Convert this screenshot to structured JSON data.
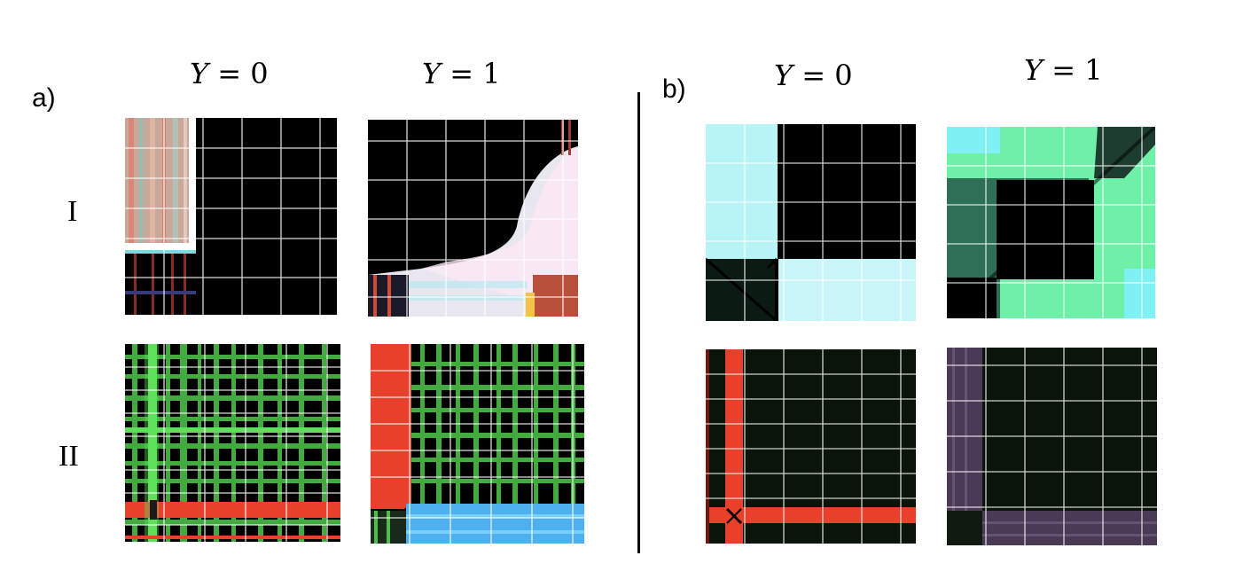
{
  "panels": {
    "a": {
      "label": "a)",
      "columns": [
        {
          "var": "Y",
          "rest": " = 0"
        },
        {
          "var": "Y",
          "rest": " = 1"
        }
      ],
      "rows": [
        "I",
        "II"
      ]
    },
    "b": {
      "label": "b)",
      "columns": [
        {
          "var": "Y",
          "rest": " = 0"
        },
        {
          "var": "Y",
          "rest": " = 1"
        }
      ]
    }
  },
  "colors": {
    "background": "#000000",
    "grid": "#ffffff",
    "red": "#e8402a",
    "green": "#5fe05a",
    "cyan": "#b8f4f6",
    "teal": "#2f6f58",
    "mint": "#6ef0a8",
    "blue": "#4fb0f0",
    "purple": "#4a3a55"
  }
}
